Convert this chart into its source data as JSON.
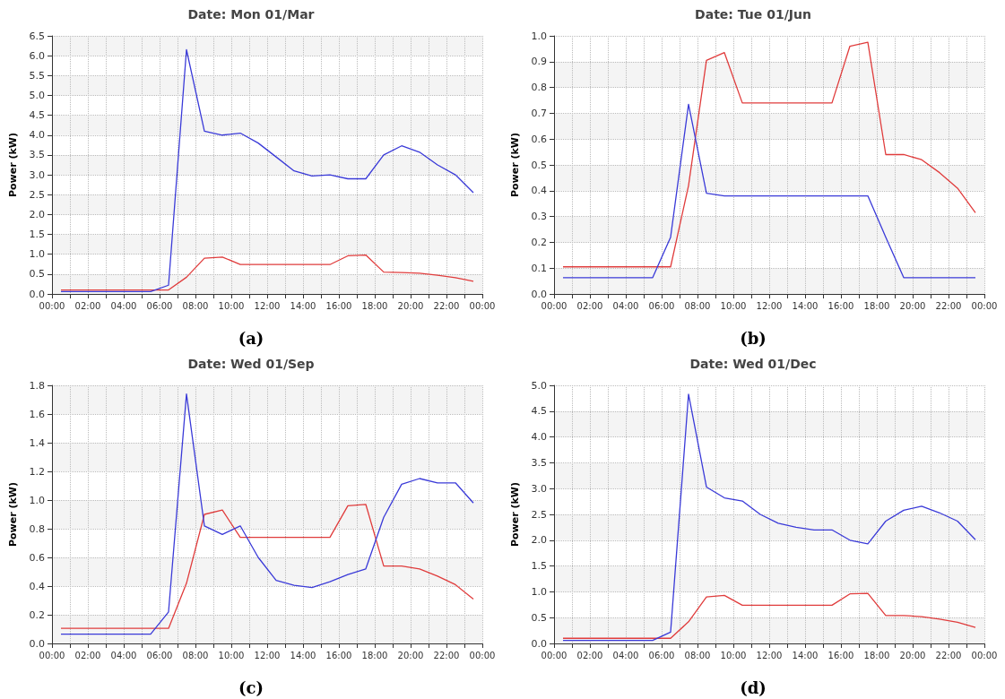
{
  "chart_data": [
    {
      "type": "line",
      "title": "Date: Mon 01/Mar",
      "ylabel": "Power (kW)",
      "annotations": [
        "(a)"
      ],
      "grid": true,
      "line_style": "solid",
      "marker": "none",
      "x": [
        0.5,
        1.5,
        2.5,
        3.5,
        4.5,
        5.5,
        6.5,
        7.5,
        8.5,
        9.5,
        10.5,
        11.5,
        12.5,
        13.5,
        14.5,
        15.5,
        16.5,
        17.5,
        18.5,
        19.5,
        20.5,
        21.5,
        22.5,
        23.5
      ],
      "xlim": [
        0,
        24
      ],
      "xticks": [
        {
          "value": 0,
          "label": "00:00"
        },
        {
          "value": 1,
          "label": null
        },
        {
          "value": 2,
          "label": "02:00"
        },
        {
          "value": 3,
          "label": null
        },
        {
          "value": 4,
          "label": "04:00"
        },
        {
          "value": 5,
          "label": null
        },
        {
          "value": 6,
          "label": "06:00"
        },
        {
          "value": 7,
          "label": null
        },
        {
          "value": 8,
          "label": "08:00"
        },
        {
          "value": 9,
          "label": null
        },
        {
          "value": 10,
          "label": "10:00"
        },
        {
          "value": 11,
          "label": null
        },
        {
          "value": 12,
          "label": "12:00"
        },
        {
          "value": 13,
          "label": null
        },
        {
          "value": 14,
          "label": "14:00"
        },
        {
          "value": 15,
          "label": null
        },
        {
          "value": 16,
          "label": "16:00"
        },
        {
          "value": 17,
          "label": null
        },
        {
          "value": 18,
          "label": "18:00"
        },
        {
          "value": 19,
          "label": null
        },
        {
          "value": 20,
          "label": "20:00"
        },
        {
          "value": 21,
          "label": null
        },
        {
          "value": 22,
          "label": "22:00"
        },
        {
          "value": 23,
          "label": null
        },
        {
          "value": 24,
          "label": "00:00"
        }
      ],
      "ylim": [
        0,
        6.5
      ],
      "yticks": [
        {
          "value": 0,
          "label": "0.0"
        },
        {
          "value": 0.5,
          "label": "0.5"
        },
        {
          "value": 1,
          "label": "1.0"
        },
        {
          "value": 1.5,
          "label": "1.5"
        },
        {
          "value": 2,
          "label": "2.0"
        },
        {
          "value": 2.5,
          "label": "2.5"
        },
        {
          "value": 3,
          "label": "3.0"
        },
        {
          "value": 3.5,
          "label": "3.5"
        },
        {
          "value": 4,
          "label": "4.0"
        },
        {
          "value": 4.5,
          "label": "4.5"
        },
        {
          "value": 5,
          "label": "5.0"
        },
        {
          "value": 5.5,
          "label": "5.5"
        },
        {
          "value": 6,
          "label": "6.0"
        },
        {
          "value": 6.5,
          "label": "6.5"
        }
      ],
      "series": [
        {
          "color": "#e03c3c",
          "values": [
            0.1,
            0.1,
            0.1,
            0.1,
            0.1,
            0.1,
            0.1,
            0.42,
            0.9,
            0.93,
            0.74,
            0.74,
            0.74,
            0.74,
            0.74,
            0.74,
            0.96,
            0.98,
            0.55,
            0.54,
            0.52,
            0.47,
            0.41,
            0.32
          ]
        },
        {
          "color": "#3a3ad8",
          "values": [
            0.06,
            0.06,
            0.06,
            0.06,
            0.06,
            0.06,
            0.22,
            6.15,
            4.1,
            4.0,
            4.05,
            3.8,
            3.45,
            3.1,
            2.97,
            3.0,
            2.9,
            2.9,
            3.5,
            3.73,
            3.57,
            3.25,
            3.0,
            2.55
          ]
        }
      ]
    },
    {
      "type": "line",
      "title": "Date: Tue 01/Jun",
      "ylabel": "Power (kW)",
      "annotations": [
        "(b)"
      ],
      "grid": true,
      "line_style": "solid",
      "marker": "none",
      "x": [
        0.5,
        1.5,
        2.5,
        3.5,
        4.5,
        5.5,
        6.5,
        7.5,
        8.5,
        9.5,
        10.5,
        11.5,
        12.5,
        13.5,
        14.5,
        15.5,
        16.5,
        17.5,
        18.5,
        19.5,
        20.5,
        21.5,
        22.5,
        23.5
      ],
      "xlim": [
        0,
        24
      ],
      "xticks": [
        {
          "value": 0,
          "label": "00:00"
        },
        {
          "value": 1,
          "label": null
        },
        {
          "value": 2,
          "label": "02:00"
        },
        {
          "value": 3,
          "label": null
        },
        {
          "value": 4,
          "label": "04:00"
        },
        {
          "value": 5,
          "label": null
        },
        {
          "value": 6,
          "label": "06:00"
        },
        {
          "value": 7,
          "label": null
        },
        {
          "value": 8,
          "label": "08:00"
        },
        {
          "value": 9,
          "label": null
        },
        {
          "value": 10,
          "label": "10:00"
        },
        {
          "value": 11,
          "label": null
        },
        {
          "value": 12,
          "label": "12:00"
        },
        {
          "value": 13,
          "label": null
        },
        {
          "value": 14,
          "label": "14:00"
        },
        {
          "value": 15,
          "label": null
        },
        {
          "value": 16,
          "label": "16:00"
        },
        {
          "value": 17,
          "label": null
        },
        {
          "value": 18,
          "label": "18:00"
        },
        {
          "value": 19,
          "label": null
        },
        {
          "value": 20,
          "label": "20:00"
        },
        {
          "value": 21,
          "label": null
        },
        {
          "value": 22,
          "label": "22:00"
        },
        {
          "value": 23,
          "label": null
        },
        {
          "value": 24,
          "label": "00:00"
        }
      ],
      "ylim": [
        0,
        1
      ],
      "yticks": [
        {
          "value": 0,
          "label": "0.0"
        },
        {
          "value": 0.1,
          "label": "0.1"
        },
        {
          "value": 0.2,
          "label": "0.2"
        },
        {
          "value": 0.3,
          "label": "0.3"
        },
        {
          "value": 0.4,
          "label": "0.4"
        },
        {
          "value": 0.5,
          "label": "0.5"
        },
        {
          "value": 0.6,
          "label": "0.6"
        },
        {
          "value": 0.7,
          "label": "0.7"
        },
        {
          "value": 0.8,
          "label": "0.8"
        },
        {
          "value": 0.9,
          "label": "0.9"
        },
        {
          "value": 1,
          "label": "1.0"
        }
      ],
      "series": [
        {
          "color": "#e03c3c",
          "values": [
            0.105,
            0.105,
            0.105,
            0.105,
            0.105,
            0.105,
            0.105,
            0.42,
            0.905,
            0.935,
            0.74,
            0.74,
            0.74,
            0.74,
            0.74,
            0.74,
            0.96,
            0.975,
            0.54,
            0.54,
            0.52,
            0.47,
            0.41,
            0.315
          ]
        },
        {
          "color": "#3a3ad8",
          "values": [
            0.063,
            0.063,
            0.063,
            0.063,
            0.063,
            0.063,
            0.22,
            0.735,
            0.39,
            0.38,
            0.38,
            0.38,
            0.38,
            0.38,
            0.38,
            0.38,
            0.38,
            0.38,
            0.22,
            0.063,
            0.063,
            0.063,
            0.063,
            0.063
          ]
        }
      ]
    },
    {
      "type": "line",
      "title": "Date: Wed 01/Sep",
      "ylabel": "Power (kW)",
      "annotations": [
        "(c)"
      ],
      "grid": true,
      "line_style": "solid",
      "marker": "none",
      "x": [
        0.5,
        1.5,
        2.5,
        3.5,
        4.5,
        5.5,
        6.5,
        7.5,
        8.5,
        9.5,
        10.5,
        11.5,
        12.5,
        13.5,
        14.5,
        15.5,
        16.5,
        17.5,
        18.5,
        19.5,
        20.5,
        21.5,
        22.5,
        23.5
      ],
      "xlim": [
        0,
        24
      ],
      "xticks": [
        {
          "value": 0,
          "label": "00:00"
        },
        {
          "value": 1,
          "label": null
        },
        {
          "value": 2,
          "label": "02:00"
        },
        {
          "value": 3,
          "label": null
        },
        {
          "value": 4,
          "label": "04:00"
        },
        {
          "value": 5,
          "label": null
        },
        {
          "value": 6,
          "label": "06:00"
        },
        {
          "value": 7,
          "label": null
        },
        {
          "value": 8,
          "label": "08:00"
        },
        {
          "value": 9,
          "label": null
        },
        {
          "value": 10,
          "label": "10:00"
        },
        {
          "value": 11,
          "label": null
        },
        {
          "value": 12,
          "label": "12:00"
        },
        {
          "value": 13,
          "label": null
        },
        {
          "value": 14,
          "label": "14:00"
        },
        {
          "value": 15,
          "label": null
        },
        {
          "value": 16,
          "label": "16:00"
        },
        {
          "value": 17,
          "label": null
        },
        {
          "value": 18,
          "label": "18:00"
        },
        {
          "value": 19,
          "label": null
        },
        {
          "value": 20,
          "label": "20:00"
        },
        {
          "value": 21,
          "label": null
        },
        {
          "value": 22,
          "label": "22:00"
        },
        {
          "value": 23,
          "label": null
        },
        {
          "value": 24,
          "label": "00:00"
        }
      ],
      "ylim": [
        0,
        1.8
      ],
      "yticks": [
        {
          "value": 0,
          "label": "0.0"
        },
        {
          "value": 0.2,
          "label": "0.2"
        },
        {
          "value": 0.4,
          "label": "0.4"
        },
        {
          "value": 0.6,
          "label": "0.6"
        },
        {
          "value": 0.8,
          "label": "0.8"
        },
        {
          "value": 1,
          "label": "1.0"
        },
        {
          "value": 1.2,
          "label": "1.2"
        },
        {
          "value": 1.4,
          "label": "1.4"
        },
        {
          "value": 1.6,
          "label": "1.6"
        },
        {
          "value": 1.8,
          "label": "1.8"
        }
      ],
      "series": [
        {
          "color": "#e03c3c",
          "values": [
            0.105,
            0.105,
            0.105,
            0.105,
            0.105,
            0.105,
            0.105,
            0.42,
            0.9,
            0.93,
            0.74,
            0.74,
            0.74,
            0.74,
            0.74,
            0.74,
            0.96,
            0.97,
            0.54,
            0.54,
            0.52,
            0.47,
            0.41,
            0.31
          ]
        },
        {
          "color": "#3a3ad8",
          "values": [
            0.065,
            0.065,
            0.065,
            0.065,
            0.065,
            0.065,
            0.22,
            1.74,
            0.82,
            0.76,
            0.82,
            0.6,
            0.44,
            0.405,
            0.39,
            0.43,
            0.48,
            0.52,
            0.88,
            1.11,
            1.15,
            1.12,
            1.12,
            0.98
          ]
        }
      ]
    },
    {
      "type": "line",
      "title": "Date: Wed 01/Dec",
      "ylabel": "Power (kW)",
      "annotations": [
        "(d)"
      ],
      "grid": true,
      "line_style": "solid",
      "marker": "none",
      "x": [
        0.5,
        1.5,
        2.5,
        3.5,
        4.5,
        5.5,
        6.5,
        7.5,
        8.5,
        9.5,
        10.5,
        11.5,
        12.5,
        13.5,
        14.5,
        15.5,
        16.5,
        17.5,
        18.5,
        19.5,
        20.5,
        21.5,
        22.5,
        23.5
      ],
      "xlim": [
        0,
        24
      ],
      "xticks": [
        {
          "value": 0,
          "label": "00:00"
        },
        {
          "value": 1,
          "label": null
        },
        {
          "value": 2,
          "label": "02:00"
        },
        {
          "value": 3,
          "label": null
        },
        {
          "value": 4,
          "label": "04:00"
        },
        {
          "value": 5,
          "label": null
        },
        {
          "value": 6,
          "label": "06:00"
        },
        {
          "value": 7,
          "label": null
        },
        {
          "value": 8,
          "label": "08:00"
        },
        {
          "value": 9,
          "label": null
        },
        {
          "value": 10,
          "label": "10:00"
        },
        {
          "value": 11,
          "label": null
        },
        {
          "value": 12,
          "label": "12:00"
        },
        {
          "value": 13,
          "label": null
        },
        {
          "value": 14,
          "label": "14:00"
        },
        {
          "value": 15,
          "label": null
        },
        {
          "value": 16,
          "label": "16:00"
        },
        {
          "value": 17,
          "label": null
        },
        {
          "value": 18,
          "label": "18:00"
        },
        {
          "value": 19,
          "label": null
        },
        {
          "value": 20,
          "label": "20:00"
        },
        {
          "value": 21,
          "label": null
        },
        {
          "value": 22,
          "label": "22:00"
        },
        {
          "value": 23,
          "label": null
        },
        {
          "value": 24,
          "label": "00:00"
        }
      ],
      "ylim": [
        0,
        5
      ],
      "yticks": [
        {
          "value": 0,
          "label": "0.0"
        },
        {
          "value": 0.5,
          "label": "0.5"
        },
        {
          "value": 1,
          "label": "1.0"
        },
        {
          "value": 1.5,
          "label": "1.5"
        },
        {
          "value": 2,
          "label": "2.0"
        },
        {
          "value": 2.5,
          "label": "2.5"
        },
        {
          "value": 3,
          "label": "3.0"
        },
        {
          "value": 3.5,
          "label": "3.5"
        },
        {
          "value": 4,
          "label": "4.0"
        },
        {
          "value": 4.5,
          "label": "4.5"
        },
        {
          "value": 5,
          "label": "5.0"
        }
      ],
      "series": [
        {
          "color": "#e03c3c",
          "values": [
            0.1,
            0.1,
            0.1,
            0.1,
            0.1,
            0.1,
            0.1,
            0.42,
            0.9,
            0.93,
            0.74,
            0.74,
            0.74,
            0.74,
            0.74,
            0.74,
            0.96,
            0.97,
            0.54,
            0.54,
            0.52,
            0.47,
            0.41,
            0.31
          ]
        },
        {
          "color": "#3a3ad8",
          "values": [
            0.06,
            0.06,
            0.06,
            0.06,
            0.06,
            0.06,
            0.22,
            4.83,
            3.03,
            2.82,
            2.76,
            2.5,
            2.33,
            2.25,
            2.2,
            2.2,
            2.0,
            1.93,
            2.37,
            2.58,
            2.66,
            2.53,
            2.37,
            2.01
          ]
        }
      ]
    }
  ]
}
